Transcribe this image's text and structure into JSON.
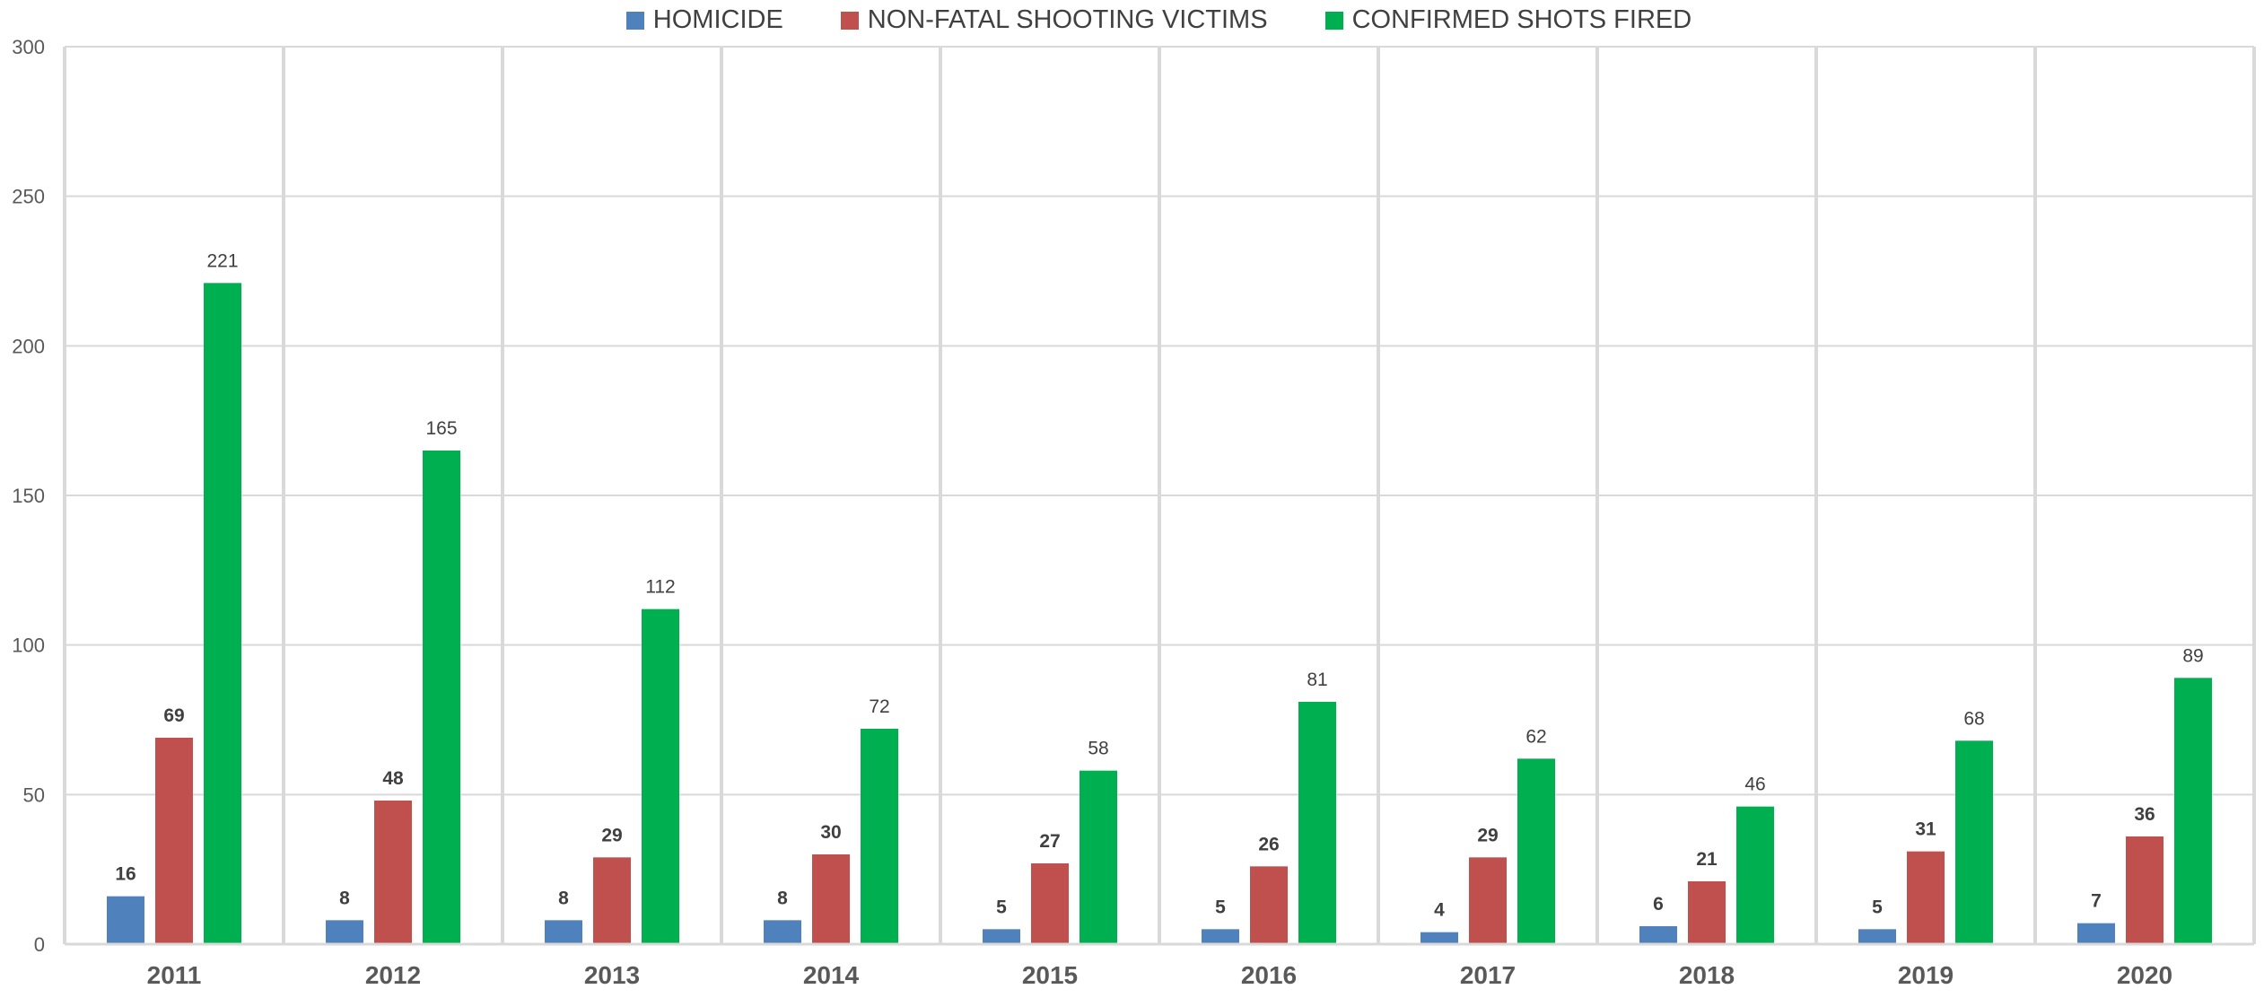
{
  "chart_data": {
    "type": "bar",
    "title": "",
    "xlabel": "",
    "ylabel": "",
    "categories": [
      "2011",
      "2012",
      "2013",
      "2014",
      "2015",
      "2016",
      "2017",
      "2018",
      "2019",
      "2020"
    ],
    "series": [
      {
        "name": "HOMICIDE",
        "color": "#4F81BD",
        "values": [
          16,
          8,
          8,
          8,
          5,
          5,
          4,
          6,
          5,
          7
        ]
      },
      {
        "name": "NON-FATAL SHOOTING VICTIMS",
        "color": "#C0504D",
        "values": [
          69,
          48,
          29,
          30,
          27,
          26,
          29,
          21,
          31,
          36
        ]
      },
      {
        "name": "CONFIRMED SHOTS FIRED",
        "color": "#00B050",
        "values": [
          221,
          165,
          112,
          72,
          58,
          81,
          62,
          46,
          68,
          89
        ]
      }
    ],
    "ylim": [
      0,
      300
    ],
    "yticks": [
      "0",
      "50",
      "100",
      "150",
      "200",
      "250",
      "300"
    ],
    "grid": true,
    "legend_position": "top-center",
    "data_labels": true
  }
}
